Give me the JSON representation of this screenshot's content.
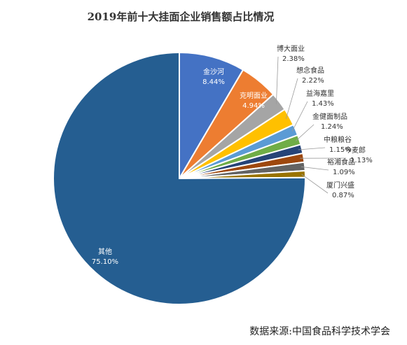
{
  "chart_data": {
    "type": "pie",
    "title": "2019年前十大挂面企业销售额占比情况",
    "source": "数据来源:中国食品科学技术学会",
    "start_angle": 0,
    "direction": "clockwise",
    "slices": [
      {
        "name": "金沙河",
        "value": 8.44,
        "pct_label": "8.44%",
        "color": "#4472C4",
        "label_inside": true
      },
      {
        "name": "克明面业",
        "value": 4.94,
        "pct_label": "4.94%",
        "color": "#ED7D31",
        "label_inside": true
      },
      {
        "name": "博大面业",
        "value": 2.38,
        "pct_label": "2.38%",
        "color": "#A5A5A5",
        "label_inside": false
      },
      {
        "name": "想念食品",
        "value": 2.22,
        "pct_label": "2.22%",
        "color": "#FFC000",
        "label_inside": false
      },
      {
        "name": "益海嘉里",
        "value": 1.43,
        "pct_label": "1.43%",
        "color": "#5B9BD5",
        "label_inside": false
      },
      {
        "name": "金健面制品",
        "value": 1.24,
        "pct_label": "1.24%",
        "color": "#70AD47",
        "label_inside": false
      },
      {
        "name": "中粮粮谷",
        "value": 1.15,
        "pct_label": "1.15%",
        "color": "#264478",
        "label_inside": false
      },
      {
        "name": "今麦郎",
        "value": 1.13,
        "pct_label": "1.13%",
        "color": "#9E480E",
        "label_inside": false
      },
      {
        "name": "裕湘食品",
        "value": 1.09,
        "pct_label": "1.09%",
        "color": "#636363",
        "label_inside": false
      },
      {
        "name": "厦门兴盛",
        "value": 0.87,
        "pct_label": "0.87%",
        "color": "#997300",
        "label_inside": false
      },
      {
        "name": "其他",
        "value": 75.1,
        "pct_label": "75.10%",
        "color": "#255E91",
        "label_inside": true
      }
    ]
  }
}
